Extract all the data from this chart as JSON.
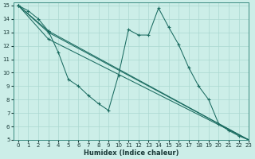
{
  "xlabel": "Humidex (Indice chaleur)",
  "bg_color": "#cceee8",
  "grid_color": "#aad8d0",
  "line_color": "#1a6b60",
  "xlim": [
    -0.5,
    23
  ],
  "ylim": [
    5,
    15.2
  ],
  "xticks": [
    0,
    1,
    2,
    3,
    4,
    5,
    6,
    7,
    8,
    9,
    10,
    11,
    12,
    13,
    14,
    15,
    16,
    17,
    18,
    19,
    20,
    21,
    22,
    23
  ],
  "yticks": [
    5,
    6,
    7,
    8,
    9,
    10,
    11,
    12,
    13,
    14,
    15
  ],
  "curve1_x": [
    0,
    1,
    2,
    3,
    4,
    5,
    6,
    7,
    8,
    9,
    10,
    11,
    12,
    13,
    14,
    15,
    16,
    17,
    18,
    19,
    20,
    21,
    22,
    23
  ],
  "curve1_y": [
    15,
    14.6,
    14.0,
    13.1,
    11.5,
    9.5,
    9.0,
    8.3,
    7.7,
    7.2,
    9.8,
    13.2,
    12.8,
    12.8,
    14.8,
    13.4,
    12.1,
    10.4,
    9.0,
    8.0,
    6.2,
    5.7,
    5.3,
    5.0
  ],
  "curve2_x": [
    0,
    3,
    23
  ],
  "curve2_y": [
    15,
    13.1,
    5.0
  ],
  "curve3_x": [
    0,
    3,
    23
  ],
  "curve3_y": [
    15,
    13.0,
    5.0
  ],
  "curve4_x": [
    0,
    3,
    23
  ],
  "curve4_y": [
    15,
    12.5,
    5.0
  ]
}
